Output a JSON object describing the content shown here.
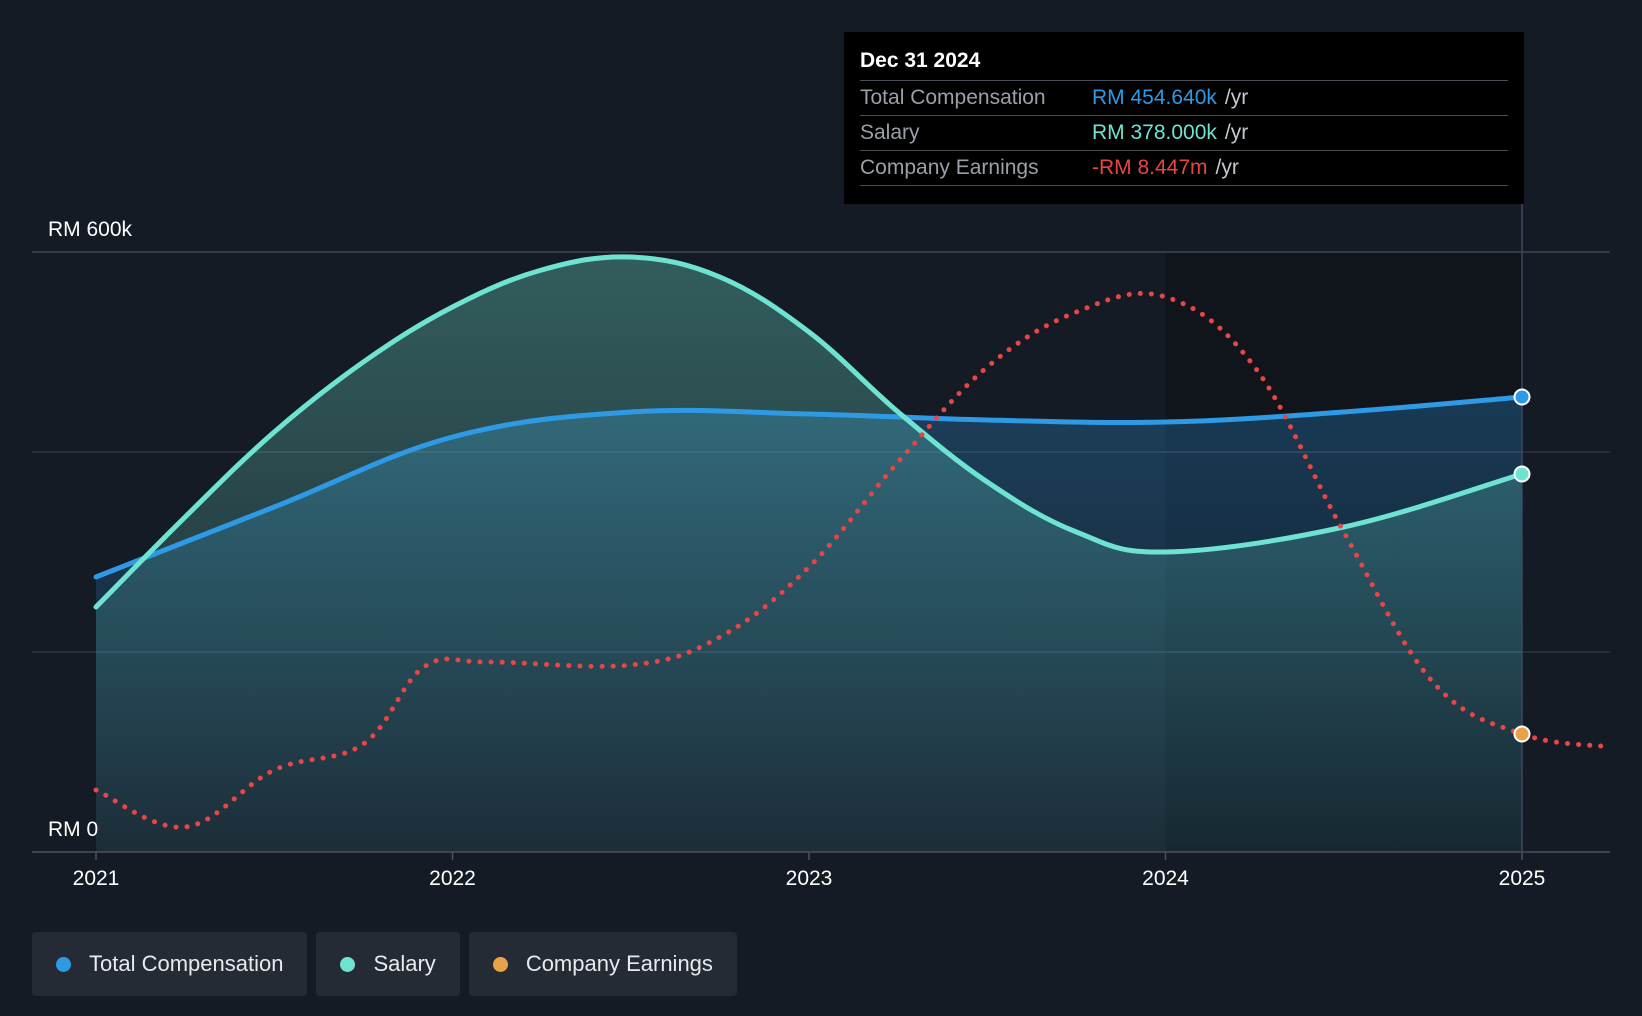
{
  "chart_data": {
    "type": "area",
    "y_axis": {
      "top_label": "RM 600k",
      "bottom_label": "RM 0",
      "ylim": [
        0,
        600
      ]
    },
    "x_axis": {
      "ticks": [
        "2021",
        "2022",
        "2023",
        "2024",
        "2025"
      ],
      "xlim": [
        2021.0,
        2025.25
      ]
    },
    "forecast_shade_from": 2024.0,
    "series": [
      {
        "name": "Total Compensation",
        "color": "#2e9ae6",
        "x": [
          2021.0,
          2021.5,
          2022.0,
          2022.5,
          2023.0,
          2023.5,
          2024.0,
          2024.5,
          2025.0
        ],
        "values": [
          275,
          345,
          415,
          440,
          438,
          432,
          430,
          440,
          455
        ]
      },
      {
        "name": "Salary",
        "color": "#6fe3d2",
        "x": [
          2021.0,
          2021.25,
          2021.5,
          2021.75,
          2022.0,
          2022.25,
          2022.5,
          2022.75,
          2023.0,
          2023.25,
          2023.5,
          2023.75,
          2024.0,
          2024.5,
          2025.0
        ],
        "values": [
          245,
          335,
          420,
          490,
          545,
          582,
          595,
          575,
          520,
          440,
          370,
          320,
          300,
          325,
          378
        ]
      },
      {
        "name": "Company Earnings",
        "color": "#e84545",
        "dashed": true,
        "x": [
          2021.0,
          2021.25,
          2021.5,
          2021.75,
          2021.92,
          2022.1,
          2022.5,
          2022.75,
          2023.0,
          2023.25,
          2023.5,
          2023.75,
          2024.0,
          2024.25,
          2024.5,
          2024.75,
          2025.0,
          2025.25
        ],
        "values": [
          62,
          25,
          82,
          108,
          185,
          190,
          187,
          215,
          285,
          390,
          485,
          540,
          555,
          485,
          320,
          170,
          118,
          105
        ]
      }
    ]
  },
  "tooltip": {
    "date": "Dec 31 2024",
    "rows": [
      {
        "label": "Total Compensation",
        "value": "RM 454.640k",
        "unit": "/yr",
        "color": "#2e9ae6"
      },
      {
        "label": "Salary",
        "value": "RM 378.000k",
        "unit": "/yr",
        "color": "#6fe3d2"
      },
      {
        "label": "Company Earnings",
        "value": "-RM 8.447m",
        "unit": "/yr",
        "color": "#e84545"
      }
    ]
  },
  "legend": [
    {
      "label": "Total Compensation",
      "color": "#2e9ae6"
    },
    {
      "label": "Salary",
      "color": "#6fe3d2"
    },
    {
      "label": "Company Earnings",
      "color": "#e8a24a"
    }
  ]
}
